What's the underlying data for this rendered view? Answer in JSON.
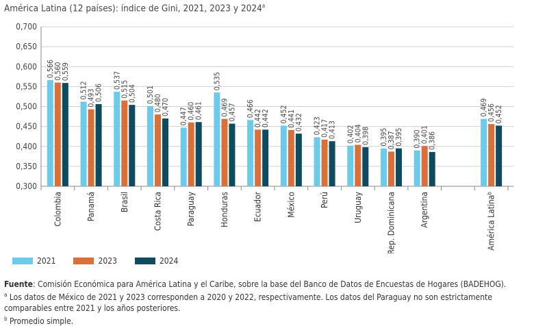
{
  "title": "América Latina (12 países): índice de Gini, 2021, 2023 y 2024",
  "title_sup": "a",
  "chart_data": {
    "type": "bar",
    "ylim": [
      0.3,
      0.7
    ],
    "yticks": [
      "0,300",
      "0,350",
      "0,400",
      "0,450",
      "0,500",
      "0,550",
      "0,600",
      "0,650",
      "0,700"
    ],
    "grid": true,
    "legend_position": "bottom-left",
    "categories": [
      "Colombia",
      "Panamá",
      "Brasil",
      "Costa Rica",
      "Paraguay",
      "Honduras",
      "Ecuador",
      "México",
      "Perú",
      "Uruguay",
      "Rep. Dominicana",
      "Argentina",
      "",
      "América Latina"
    ],
    "category_sup": [
      "",
      "",
      "",
      "",
      "",
      "",
      "",
      "",
      "",
      "",
      "",
      "",
      "",
      "b"
    ],
    "series": [
      {
        "name": "2021",
        "color": "#6ccbea",
        "values": [
          0.566,
          0.512,
          0.537,
          0.501,
          0.447,
          0.535,
          0.466,
          0.452,
          0.423,
          0.402,
          0.395,
          0.39,
          null,
          0.469
        ]
      },
      {
        "name": "2023",
        "color": "#d9703a",
        "values": [
          0.56,
          0.493,
          0.515,
          0.48,
          0.46,
          0.469,
          0.442,
          0.441,
          0.417,
          0.404,
          0.387,
          0.401,
          null,
          0.456
        ]
      },
      {
        "name": "2024",
        "color": "#0e4b5f",
        "values": [
          0.559,
          0.506,
          0.504,
          0.47,
          0.461,
          0.457,
          0.442,
          0.432,
          0.413,
          0.398,
          0.395,
          0.386,
          null,
          0.452
        ]
      }
    ]
  },
  "notes": {
    "source_label": "Fuente",
    "source": ": Comisión Económica para América Latina y el Caribe, sobre la base del Banco de Datos de Encuestas de Hogares (BADEHOG).",
    "a_mark": "a",
    "a": " Los datos de México de 2021 y 2023 corresponden a 2020 y 2022, respectivamente. Los datos del Paraguay no son estrictamente comparables entre 2021 y los años posteriores.",
    "b_mark": "b",
    "b": " Promedio simple."
  }
}
